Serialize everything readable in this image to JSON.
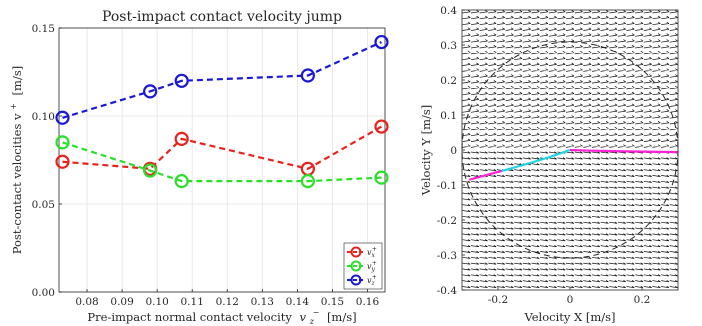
{
  "figure": {
    "background": "#ffffff",
    "axis_color": "#262626",
    "grid_color": "#e3e3e3"
  },
  "chart_data": [
    {
      "type": "line",
      "title": "Post-impact contact velocity jump",
      "xlabel": "Pre-impact normal contact velocity",
      "xlabel_symbol": {
        "base": "v",
        "sub": "z",
        "sup": "−"
      },
      "xlabel_unit": "[m/s]",
      "ylabel": "Post-contact velocities v",
      "ylabel_sup": "+",
      "ylabel_unit": "[m/s]",
      "xlim": [
        0.072,
        0.165
      ],
      "ylim": [
        0,
        0.15
      ],
      "xticks": [
        0.08,
        0.09,
        0.1,
        0.11,
        0.12,
        0.13,
        0.14,
        0.15,
        0.16
      ],
      "xtick_labels": [
        "0.08",
        "0.09",
        "0.10",
        "0.11",
        "0.12",
        "0.13",
        "0.14",
        "0.15",
        "0.16"
      ],
      "yticks": [
        0,
        0.05,
        0.1,
        0.15
      ],
      "ytick_labels": [
        "0.00",
        "0.05",
        "0.10",
        "0.15"
      ],
      "grid": true,
      "legend_position": "bottom-right",
      "x": [
        0.073,
        0.098,
        0.107,
        0.143,
        0.164
      ],
      "series": [
        {
          "name": "v",
          "name_sub": "x",
          "name_sup": "+",
          "color": "#e8231d",
          "values": [
            0.074,
            0.07,
            0.087,
            0.07,
            0.094
          ]
        },
        {
          "name": "v",
          "name_sub": "y",
          "name_sup": "+",
          "color": "#2bdf2b",
          "values": [
            0.085,
            0.069,
            0.063,
            0.063,
            0.065
          ]
        },
        {
          "name": "v",
          "name_sub": "z",
          "name_sup": "+",
          "color": "#1919d6",
          "values": [
            0.099,
            0.114,
            0.12,
            0.123,
            0.142
          ]
        }
      ]
    },
    {
      "type": "vector_field",
      "xlabel": "Velocity X [m/s]",
      "ylabel": "Velocity Y [m/s]",
      "xlim": [
        -0.3,
        0.3
      ],
      "ylim": [
        -0.4,
        0.4
      ],
      "xticks": [
        -0.2,
        0,
        0.2
      ],
      "xtick_labels": [
        "-0.2",
        "0",
        "0.2"
      ],
      "yticks": [
        0.4,
        0.3,
        0.2,
        0.1,
        0,
        -0.1,
        -0.2,
        -0.3,
        -0.4
      ],
      "ytick_labels": [
        "0.4",
        "0.3",
        "0.2",
        "0.1",
        "0",
        "-0.1",
        "-0.2",
        "-0.3",
        "-0.4"
      ],
      "field": {
        "direction": "right",
        "arrow_length": 0.022,
        "spacing_x": 0.024,
        "spacing_y": 0.0167
      },
      "friction_circle_radius": 0.3,
      "trajectory_segments": [
        {
          "color": "#ff22d6",
          "x": [
            -0.28,
            -0.255,
            -0.22,
            -0.19
          ],
          "y": [
            -0.085,
            -0.078,
            -0.068,
            -0.06
          ]
        },
        {
          "color": "#22d4e2",
          "x": [
            -0.19,
            -0.12,
            -0.05,
            0.0
          ],
          "y": [
            -0.06,
            -0.04,
            -0.018,
            0.0
          ]
        },
        {
          "color": "#ff22d6",
          "x": [
            0.0,
            0.06,
            0.16,
            0.3
          ],
          "y": [
            0.0,
            -0.002,
            -0.004,
            -0.006
          ]
        }
      ]
    }
  ]
}
